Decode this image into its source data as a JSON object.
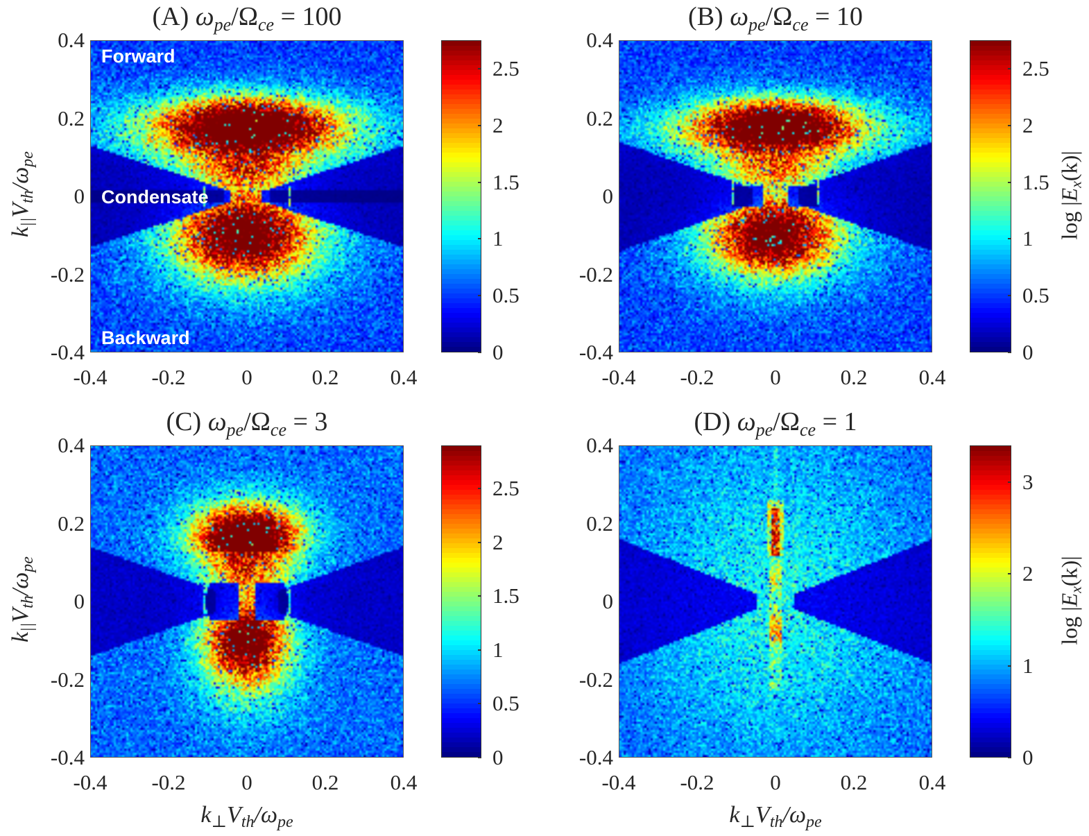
{
  "figure": {
    "panels": [
      {
        "id": "A",
        "title_prefix": "(A)",
        "title_num": "= 100",
        "ratio_symbol": "ω",
        "ratio_sub1": "pe",
        "ratio_Omega": "/Ω",
        "ratio_sub2": "ce",
        "show_ylabel": true,
        "show_xlabel": false,
        "show_clabel": false,
        "annotations": [
          "Forward",
          "Condensate",
          "Backward"
        ]
      },
      {
        "id": "B",
        "title_prefix": "(B)",
        "title_num": "= 10",
        "ratio_symbol": "ω",
        "ratio_sub1": "pe",
        "ratio_Omega": "/Ω",
        "ratio_sub2": "ce",
        "show_ylabel": false,
        "show_xlabel": false,
        "show_clabel": true,
        "annotations": []
      },
      {
        "id": "C",
        "title_prefix": "(C)",
        "title_num": "= 3",
        "ratio_symbol": "ω",
        "ratio_sub1": "pe",
        "ratio_Omega": "/Ω",
        "ratio_sub2": "ce",
        "show_ylabel": true,
        "show_xlabel": true,
        "show_clabel": false,
        "annotations": []
      },
      {
        "id": "D",
        "title_prefix": "(D)",
        "title_num": "= 1",
        "ratio_symbol": "ω",
        "ratio_sub1": "pe",
        "ratio_Omega": "/Ω",
        "ratio_sub2": "ce",
        "show_ylabel": false,
        "show_xlabel": true,
        "show_clabel": true,
        "annotations": []
      }
    ],
    "axis_text": {
      "ylabel_k": "k",
      "ylabel_par": "||",
      "ylabel_V": "V",
      "ylabel_th": "th",
      "ylabel_slash": "/ω",
      "ylabel_pe": "pe",
      "xlabel_k": "k",
      "xlabel_perp": "⊥",
      "xlabel_V": "V",
      "xlabel_th": "th",
      "xlabel_slash": "/ω",
      "xlabel_pe": "pe",
      "clabel_log": "log |",
      "clabel_E": "E",
      "clabel_x": "x",
      "clabel_rest": "(k)|"
    }
  },
  "chart_data": [
    {
      "type": "heatmap",
      "title": "(A) ω_pe/Ω_ce = 100",
      "xlabel": "k⊥ V_th / ω_pe",
      "ylabel": "k|| V_th / ω_pe",
      "xlim": [
        -0.4,
        0.4
      ],
      "ylim": [
        -0.4,
        0.4
      ],
      "xticks": [
        "-0.4",
        "-0.2",
        "0",
        "0.2",
        "0.4"
      ],
      "yticks": [
        "0.4",
        "0.2",
        "0",
        "-0.2",
        "-0.4"
      ],
      "colorbar": {
        "label": "",
        "range": [
          0,
          2.75
        ],
        "ticks": [
          "0",
          "0.5",
          "1",
          "1.5",
          "2",
          "2.5"
        ],
        "tick_values": [
          0,
          0.5,
          1,
          1.5,
          2,
          2.5
        ],
        "colormap": "jet"
      },
      "annotations": [
        {
          "text": "Forward",
          "x": -0.37,
          "y": 0.36
        },
        {
          "text": "Condensate",
          "x": -0.37,
          "y": 0.0
        },
        {
          "text": "Backward",
          "x": -0.37,
          "y": -0.36
        }
      ],
      "features": [
        {
          "kind": "lobe",
          "cx": 0.0,
          "cy": 0.18,
          "sx": 0.22,
          "sy": 0.075,
          "peak": 2.7,
          "note": "forward lobe, broad in k_perp"
        },
        {
          "kind": "lobe",
          "cx": 0.0,
          "cy": -0.1,
          "sx": 0.16,
          "sy": 0.1,
          "peak": 2.3,
          "note": "backward lobe"
        },
        {
          "kind": "gap",
          "cy": 0.0,
          "note": "condensate band near k|| = 0 with faint lines at k_perp ≈ ±0.11"
        }
      ],
      "grid": false
    },
    {
      "type": "heatmap",
      "title": "(B) ω_pe/Ω_ce = 10",
      "xlabel": "k⊥ V_th / ω_pe",
      "ylabel": "k|| V_th / ω_pe",
      "xlim": [
        -0.4,
        0.4
      ],
      "ylim": [
        -0.4,
        0.4
      ],
      "xticks": [
        "-0.4",
        "-0.2",
        "0",
        "0.2",
        "0.4"
      ],
      "yticks": [
        "0.4",
        "0.2",
        "0",
        "-0.2",
        "-0.4"
      ],
      "colorbar": {
        "label": "log |E_x(k)|",
        "range": [
          0,
          2.75
        ],
        "ticks": [
          "0",
          "0.5",
          "1",
          "1.5",
          "2",
          "2.5"
        ],
        "tick_values": [
          0,
          0.5,
          1,
          1.5,
          2,
          2.5
        ],
        "colormap": "jet"
      },
      "features": [
        {
          "kind": "lobe",
          "cx": 0.0,
          "cy": 0.18,
          "sx": 0.2,
          "sy": 0.07,
          "peak": 2.7
        },
        {
          "kind": "lobe",
          "cx": 0.0,
          "cy": -0.1,
          "sx": 0.15,
          "sy": 0.1,
          "peak": 2.3
        },
        {
          "kind": "lines",
          "x": [
            -0.11,
            0.11
          ],
          "y_range": [
            -0.02,
            0.04
          ]
        }
      ],
      "grid": false
    },
    {
      "type": "heatmap",
      "title": "(C) ω_pe/Ω_ce = 3",
      "xlabel": "k⊥ V_th / ω_pe",
      "ylabel": "k|| V_th / ω_pe",
      "xlim": [
        -0.4,
        0.4
      ],
      "ylim": [
        -0.4,
        0.4
      ],
      "xticks": [
        "-0.4",
        "-0.2",
        "0",
        "0.2",
        "0.4"
      ],
      "yticks": [
        "0.4",
        "0.2",
        "0",
        "-0.2",
        "-0.4"
      ],
      "colorbar": {
        "label": "",
        "range": [
          0,
          2.9
        ],
        "ticks": [
          "0",
          "0.5",
          "1",
          "1.5",
          "2",
          "2.5"
        ],
        "tick_values": [
          0,
          0.5,
          1,
          1.5,
          2,
          2.5
        ],
        "colormap": "jet"
      },
      "features": [
        {
          "kind": "lobe",
          "cx": 0.0,
          "cy": 0.17,
          "sx": 0.1,
          "sy": 0.07,
          "peak": 2.85
        },
        {
          "kind": "lobe",
          "cx": 0.0,
          "cy": -0.1,
          "sx": 0.08,
          "sy": 0.1,
          "peak": 2.3
        },
        {
          "kind": "ring",
          "cx": 0.0,
          "cy": 0.0,
          "r": 0.11
        }
      ],
      "grid": false
    },
    {
      "type": "heatmap",
      "title": "(D) ω_pe/Ω_ce = 1",
      "xlabel": "k⊥ V_th / ω_pe",
      "ylabel": "k|| V_th / ω_pe",
      "xlim": [
        -0.4,
        0.4
      ],
      "ylim": [
        -0.4,
        0.4
      ],
      "xticks": [
        "-0.4",
        "-0.2",
        "0",
        "0.2",
        "0.4"
      ],
      "yticks": [
        "0.4",
        "0.2",
        "0",
        "-0.2",
        "-0.4"
      ],
      "colorbar": {
        "label": "log |E_x(k)|",
        "range": [
          0,
          3.4
        ],
        "ticks": [
          "0",
          "1",
          "2",
          "3"
        ],
        "tick_values": [
          0,
          1,
          2,
          3
        ],
        "colormap": "jet"
      },
      "features": [
        {
          "kind": "streak",
          "cx": 0.0,
          "y_range": [
            0.12,
            0.24
          ],
          "peak": 3.2,
          "note": "narrow vertical streak at k_perp ≈ 0"
        },
        {
          "kind": "streak",
          "cx": 0.0,
          "y_range": [
            -0.23,
            0.1
          ],
          "peak": 2.0
        }
      ],
      "grid": false
    }
  ]
}
